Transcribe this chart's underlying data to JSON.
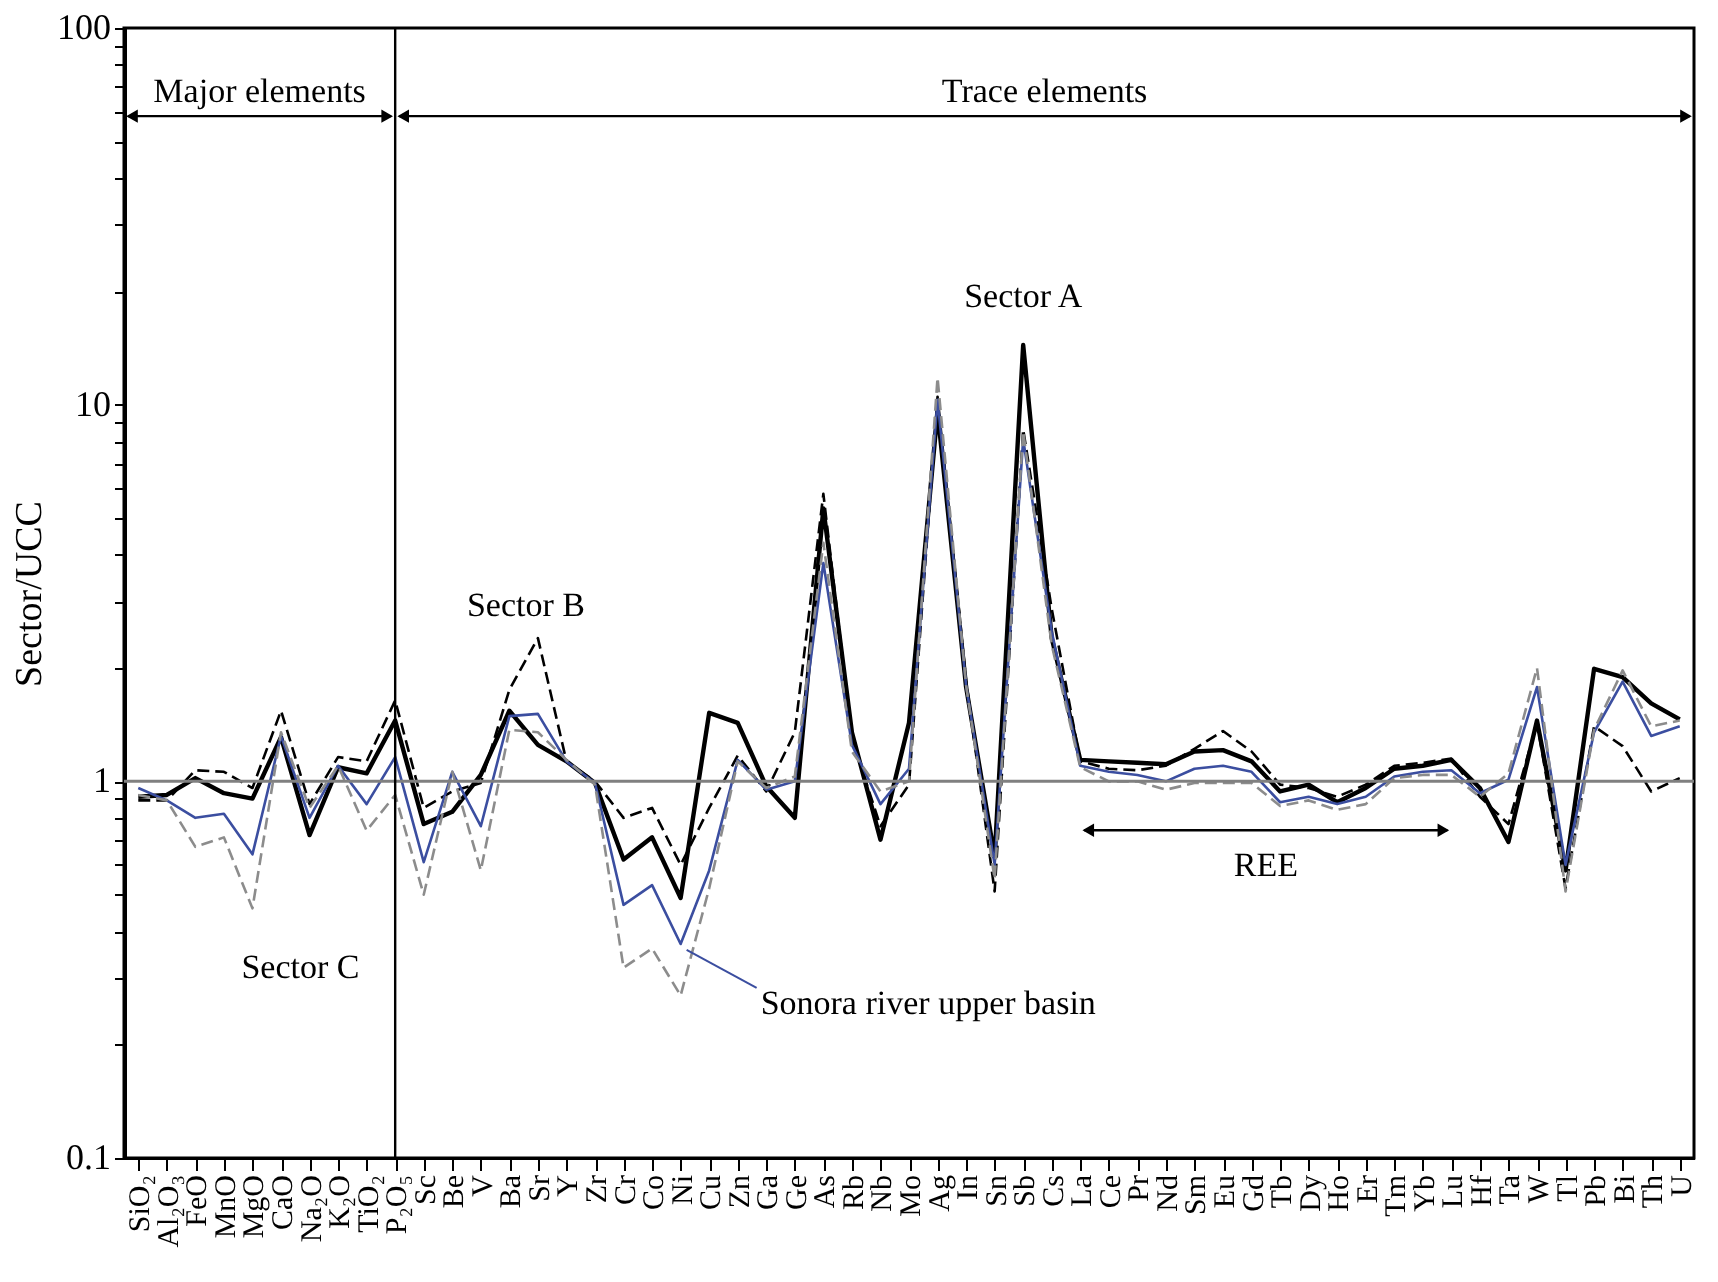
{
  "chart_data": {
    "type": "line",
    "ylabel": "Sector/UCC",
    "log": "y",
    "categories": [
      "SiO₂",
      "Al₂O₃",
      "FeO",
      "MnO",
      "MgO",
      "CaO",
      "Na₂O",
      "K₂O",
      "TiO₂",
      "P₂O₅",
      "Sc",
      "Be",
      "V",
      "Ba",
      "Sr",
      "Y",
      "Zr",
      "Cr",
      "Co",
      "Ni",
      "Cu",
      "Zn",
      "Ga",
      "Ge",
      "As",
      "Rb",
      "Nb",
      "Mo",
      "Ag",
      "In",
      "Sn",
      "Sb",
      "Cs",
      "La",
      "Ce",
      "Pr",
      "Nd",
      "Sm",
      "Eu",
      "Gd",
      "Tb",
      "Dy",
      "Ho",
      "Er",
      "Tm",
      "Yb",
      "Lu",
      "Hf",
      "Ta",
      "W",
      "Tl",
      "Pb",
      "Bi",
      "Th",
      "U"
    ],
    "ylim": [
      0.1,
      100
    ],
    "yticks": [
      0.1,
      {
        "value": 0.2,
        "label": null
      },
      {
        "value": 0.3,
        "label": null
      },
      {
        "value": 0.4,
        "label": null
      },
      {
        "value": 0.5,
        "label": null
      },
      {
        "value": 0.6,
        "label": null
      },
      {
        "value": 0.7,
        "label": null
      },
      {
        "value": 0.8,
        "label": null
      },
      {
        "value": 0.9,
        "label": null
      },
      1,
      {
        "value": 2,
        "label": null
      },
      {
        "value": 3,
        "label": null
      },
      {
        "value": 4,
        "label": null
      },
      {
        "value": 5,
        "label": null
      },
      {
        "value": 6,
        "label": null
      },
      {
        "value": 7,
        "label": null
      },
      {
        "value": 8,
        "label": null
      },
      {
        "value": 9,
        "label": null
      },
      10,
      {
        "value": 20,
        "label": null
      },
      {
        "value": 30,
        "label": null
      },
      {
        "value": 40,
        "label": null
      },
      {
        "value": 50,
        "label": null
      },
      {
        "value": 60,
        "label": null
      },
      {
        "value": 70,
        "label": null
      },
      {
        "value": 80,
        "label": null
      },
      {
        "value": 90,
        "label": null
      },
      100
    ],
    "series": [
      {
        "name": "Sector A",
        "color": "#000000",
        "line_style": "solid",
        "values": [
          0.91,
          0.92,
          1.02,
          0.93,
          0.9,
          1.31,
          0.72,
          1.09,
          1.05,
          1.45,
          0.77,
          0.83,
          1.04,
          1.54,
          1.25,
          1.13,
          0.99,
          0.62,
          0.71,
          0.49,
          1.52,
          1.43,
          0.97,
          0.8,
          5.3,
          1.35,
          0.7,
          1.43,
          9.6,
          1.78,
          0.63,
          14.4,
          2.4,
          1.14,
          1.13,
          1.12,
          1.11,
          1.2,
          1.21,
          1.13,
          0.94,
          0.98,
          0.88,
          0.96,
          1.08,
          1.1,
          1.14,
          0.96,
          0.69,
          1.45,
          0.58,
          1.99,
          1.89,
          1.61,
          1.46
        ]
      },
      {
        "name": "Sector B",
        "color": "#000000",
        "line_style": "dashed",
        "values": [
          0.89,
          0.89,
          1.07,
          1.06,
          0.96,
          1.54,
          0.87,
          1.16,
          1.13,
          1.64,
          0.85,
          0.94,
          0.99,
          1.75,
          2.4,
          1.13,
          1.0,
          0.8,
          0.85,
          0.6,
          0.85,
          1.17,
          0.94,
          1.35,
          5.8,
          1.3,
          0.76,
          0.98,
          10.5,
          1.85,
          0.51,
          8.6,
          2.87,
          1.13,
          1.08,
          1.07,
          1.1,
          1.22,
          1.36,
          1.2,
          0.98,
          0.96,
          0.91,
          0.98,
          1.1,
          1.12,
          1.15,
          0.91,
          0.77,
          1.43,
          0.52,
          1.4,
          1.24,
          0.94,
          1.02
        ]
      },
      {
        "name": "Sonora river upper basin",
        "color": "#3b4ea0",
        "line_style": "solid",
        "values": [
          0.96,
          0.89,
          0.8,
          0.82,
          0.64,
          1.32,
          0.8,
          1.1,
          0.87,
          1.16,
          0.61,
          1.06,
          0.76,
          1.49,
          1.51,
          1.13,
          0.99,
          0.47,
          0.53,
          0.37,
          0.58,
          1.14,
          0.95,
          1.0,
          3.8,
          1.25,
          0.87,
          1.08,
          10.3,
          1.8,
          0.6,
          8.1,
          2.5,
          1.1,
          1.06,
          1.04,
          1.0,
          1.08,
          1.1,
          1.06,
          0.88,
          0.91,
          0.87,
          0.91,
          1.03,
          1.06,
          1.07,
          0.93,
          1.01,
          1.78,
          0.6,
          1.35,
          1.84,
          1.32,
          1.4
        ]
      },
      {
        "name": "Sector C",
        "color": "#8c8c8c",
        "line_style": "dashed",
        "values": [
          0.92,
          0.89,
          0.67,
          0.71,
          0.46,
          1.35,
          0.85,
          1.1,
          0.74,
          0.92,
          0.5,
          1.06,
          0.58,
          1.37,
          1.35,
          1.14,
          0.98,
          0.32,
          0.36,
          0.27,
          0.52,
          1.13,
          0.96,
          1.03,
          4.3,
          1.2,
          0.94,
          1.0,
          11.8,
          1.8,
          0.55,
          8.5,
          2.3,
          1.09,
          1.0,
          1.0,
          0.95,
          0.99,
          0.99,
          0.99,
          0.86,
          0.89,
          0.84,
          0.87,
          1.02,
          1.04,
          1.04,
          0.91,
          1.05,
          2.0,
          0.51,
          1.37,
          1.97,
          1.4,
          1.45
        ]
      }
    ],
    "ref_lines": [
      {
        "axis": "y",
        "value": 1,
        "color": "#808080"
      },
      {
        "axis": "x",
        "value": "P₂O₅",
        "color": "#000000"
      }
    ],
    "annotations": [
      "Major elements",
      "Trace elements",
      "REE"
    ]
  }
}
